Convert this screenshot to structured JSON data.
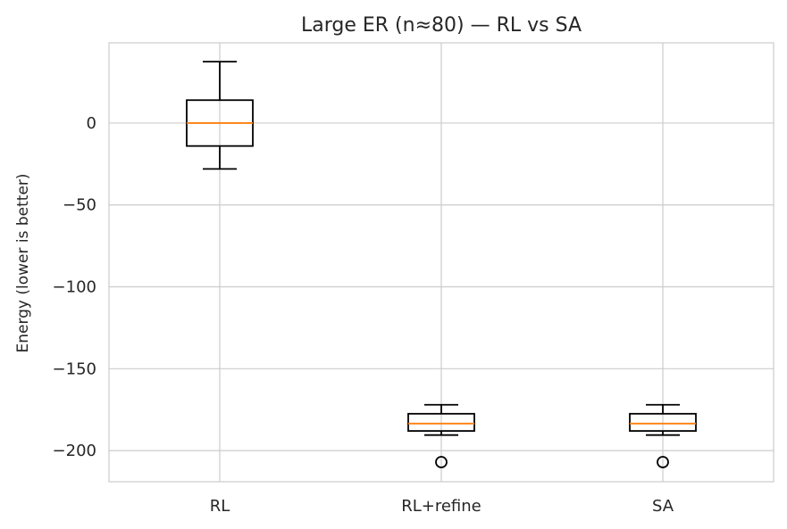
{
  "chart_data": {
    "type": "box",
    "title": "Large ER (n≈80) — RL vs SA",
    "xlabel": "",
    "ylabel": "Energy (lower is better)",
    "categories": [
      "RL",
      "RL+refine",
      "SA"
    ],
    "ylim": [
      -219,
      49
    ],
    "yticks": [
      0,
      -50,
      -100,
      -150,
      -200
    ],
    "ytick_labels": [
      "0",
      "−50",
      "−100",
      "−150",
      "−200"
    ],
    "grid": true,
    "boxes": [
      {
        "whisker_low": -28,
        "q1": -14,
        "median": 0,
        "q3": 14,
        "whisker_high": 37.5,
        "outliers": []
      },
      {
        "whisker_low": -190.5,
        "q1": -188,
        "median": -183.5,
        "q3": -177.5,
        "whisker_high": -172,
        "outliers": [
          -207
        ]
      },
      {
        "whisker_low": -190.5,
        "q1": -188,
        "median": -183.5,
        "q3": -177.5,
        "whisker_high": -172,
        "outliers": [
          -207
        ]
      }
    ],
    "colors": {
      "box": "#000000",
      "median": "#ff7f0e",
      "grid": "#cccccc",
      "frame": "#cccccc"
    }
  }
}
